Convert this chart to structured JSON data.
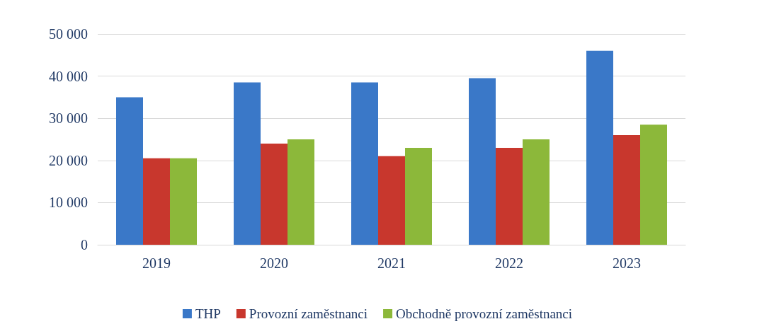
{
  "chart_data": {
    "type": "bar",
    "categories": [
      "2019",
      "2020",
      "2021",
      "2022",
      "2023"
    ],
    "series": [
      {
        "name": "THP",
        "color": "#3a78c8",
        "values": [
          35000,
          38500,
          38500,
          39500,
          46000
        ]
      },
      {
        "name": "Provozní zaměstnanci",
        "color": "#c8372d",
        "values": [
          20500,
          24000,
          21000,
          23000,
          26000
        ]
      },
      {
        "name": "Obchodně provozní zaměstnanci",
        "color": "#8cb83a",
        "values": [
          20500,
          25000,
          23000,
          25000,
          28500
        ]
      }
    ],
    "ylim": [
      0,
      50000
    ],
    "yticks": [
      {
        "value": 0,
        "label": "0"
      },
      {
        "value": 10000,
        "label": "10 000"
      },
      {
        "value": 20000,
        "label": "20 000"
      },
      {
        "value": 30000,
        "label": "30 000"
      },
      {
        "value": 40000,
        "label": "40 000"
      },
      {
        "value": 50000,
        "label": "50 000"
      }
    ],
    "grid": "y",
    "legend": "bottom"
  }
}
